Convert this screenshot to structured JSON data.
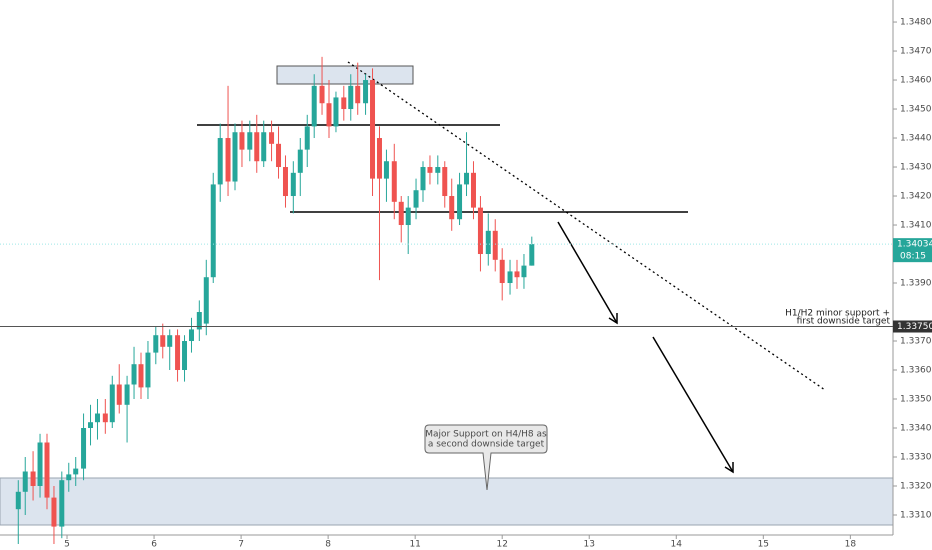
{
  "chart_data": {
    "type": "candlestick",
    "up_color": "#26a69a",
    "down_color": "#ef5350",
    "x": [
      -0.56,
      -0.48,
      -0.39,
      -0.31,
      -0.23,
      -0.15,
      -0.06,
      0.02,
      0.1,
      0.19,
      0.27,
      0.35,
      0.44,
      0.52,
      0.6,
      0.69,
      0.77,
      0.85,
      0.93,
      1.02,
      1.1,
      1.18,
      1.27,
      1.35,
      1.43,
      1.52,
      1.6,
      1.68,
      1.76,
      1.85,
      1.93,
      2.01,
      2.1,
      2.18,
      2.26,
      2.35,
      2.43,
      2.51,
      2.6,
      2.68,
      2.76,
      2.84,
      2.93,
      3.01,
      3.09,
      3.18,
      3.26,
      3.34,
      3.43,
      3.51,
      3.59,
      3.67,
      3.76,
      3.84,
      3.92,
      4.01,
      4.09,
      4.17,
      4.26,
      4.34,
      4.42,
      4.51,
      4.59,
      4.67,
      4.75,
      4.84,
      4.92,
      5.0,
      5.09,
      5.17,
      5.25,
      5.34
    ],
    "open": [
      1.3312,
      1.3318,
      1.3325,
      1.332,
      1.3335,
      1.3316,
      1.3306,
      1.3322,
      1.3324,
      1.3326,
      1.334,
      1.3342,
      1.3345,
      1.3342,
      1.3355,
      1.3348,
      1.3355,
      1.3362,
      1.3354,
      1.3366,
      1.3372,
      1.3368,
      1.3372,
      1.336,
      1.337,
      1.3374,
      1.3376,
      1.3392,
      1.3424,
      1.344,
      1.3425,
      1.3442,
      1.3436,
      1.3442,
      1.3432,
      1.3442,
      1.3438,
      1.343,
      1.342,
      1.3428,
      1.3436,
      1.3444,
      1.3458,
      1.3452,
      1.3444,
      1.3454,
      1.345,
      1.3458,
      1.3452,
      1.346,
      1.344,
      1.3426,
      1.3432,
      1.3418,
      1.341,
      1.3416,
      1.3422,
      1.343,
      1.3428,
      1.343,
      1.342,
      1.3412,
      1.3424,
      1.3428,
      1.3416,
      1.34,
      1.3408,
      1.3398,
      1.339,
      1.3394,
      1.3392,
      1.3396
    ],
    "high": [
      1.3322,
      1.333,
      1.3332,
      1.3338,
      1.3338,
      1.332,
      1.3325,
      1.3328,
      1.333,
      1.3345,
      1.3348,
      1.335,
      1.335,
      1.3358,
      1.3362,
      1.3358,
      1.3368,
      1.3366,
      1.337,
      1.3375,
      1.3376,
      1.3374,
      1.3374,
      1.3372,
      1.3378,
      1.3384,
      1.3398,
      1.3428,
      1.3445,
      1.3458,
      1.3445,
      1.3446,
      1.3446,
      1.3448,
      1.3446,
      1.3446,
      1.3444,
      1.3434,
      1.3432,
      1.344,
      1.3448,
      1.3462,
      1.3468,
      1.346,
      1.3456,
      1.3458,
      1.3462,
      1.3466,
      1.3462,
      1.3464,
      1.3444,
      1.3436,
      1.3438,
      1.342,
      1.342,
      1.3426,
      1.3432,
      1.3434,
      1.3434,
      1.3432,
      1.3426,
      1.3428,
      1.3442,
      1.3432,
      1.342,
      1.3414,
      1.3412,
      1.3402,
      1.3398,
      1.3398,
      1.34,
      1.3406
    ],
    "low": [
      1.33,
      1.331,
      1.3315,
      1.3316,
      1.3312,
      1.33,
      1.3302,
      1.3318,
      1.332,
      1.3322,
      1.3334,
      1.3336,
      1.3338,
      1.334,
      1.3345,
      1.3335,
      1.335,
      1.335,
      1.335,
      1.3362,
      1.3364,
      1.336,
      1.3356,
      1.3356,
      1.3366,
      1.337,
      1.3372,
      1.339,
      1.3418,
      1.342,
      1.3422,
      1.343,
      1.3432,
      1.3428,
      1.343,
      1.3432,
      1.3426,
      1.3416,
      1.3414,
      1.342,
      1.343,
      1.344,
      1.3448,
      1.344,
      1.3442,
      1.3446,
      1.3446,
      1.3448,
      1.3448,
      1.342,
      1.3391,
      1.3418,
      1.3412,
      1.3404,
      1.34,
      1.3412,
      1.3418,
      1.3424,
      1.3424,
      1.3416,
      1.3408,
      1.341,
      1.342,
      1.3412,
      1.3394,
      1.3396,
      1.3394,
      1.3384,
      1.3386,
      1.3388,
      1.3388,
      1.3396
    ],
    "close": [
      1.3318,
      1.3325,
      1.332,
      1.3335,
      1.3316,
      1.3306,
      1.3322,
      1.3324,
      1.3326,
      1.334,
      1.3342,
      1.3345,
      1.3342,
      1.3355,
      1.3348,
      1.3355,
      1.3362,
      1.3354,
      1.3366,
      1.3372,
      1.3368,
      1.3372,
      1.336,
      1.337,
      1.3374,
      1.338,
      1.3392,
      1.3424,
      1.344,
      1.3425,
      1.3442,
      1.3436,
      1.3442,
      1.3432,
      1.3442,
      1.3438,
      1.343,
      1.342,
      1.3428,
      1.3436,
      1.3444,
      1.3458,
      1.3452,
      1.3444,
      1.3454,
      1.345,
      1.3458,
      1.3452,
      1.346,
      1.3426,
      1.3426,
      1.3432,
      1.3418,
      1.341,
      1.3416,
      1.3422,
      1.343,
      1.3428,
      1.343,
      1.342,
      1.3412,
      1.3424,
      1.3428,
      1.3416,
      1.34,
      1.3408,
      1.3398,
      1.339,
      1.3394,
      1.3392,
      1.3396,
      1.34034
    ],
    "xlim": [
      -0.77,
      9.49
    ],
    "xticks": [
      {
        "value": 0,
        "label": "5"
      },
      {
        "value": 1,
        "label": "6"
      },
      {
        "value": 2,
        "label": "7"
      },
      {
        "value": 3,
        "label": "8"
      },
      {
        "value": 4,
        "label": "11"
      },
      {
        "value": 5,
        "label": "12"
      },
      {
        "value": 6,
        "label": "13"
      },
      {
        "value": 7,
        "label": "14"
      },
      {
        "value": 8,
        "label": "15"
      },
      {
        "value": 9,
        "label": "18"
      }
    ],
    "ylim": [
      1.33031,
      1.34876
    ],
    "yticks": [
      {
        "value": 1.331,
        "label": "1.33100"
      },
      {
        "value": 1.332,
        "label": "1.33200"
      },
      {
        "value": 1.333,
        "label": "1.33300"
      },
      {
        "value": 1.334,
        "label": "1.33400"
      },
      {
        "value": 1.335,
        "label": "1.33500"
      },
      {
        "value": 1.336,
        "label": "1.33600"
      },
      {
        "value": 1.337,
        "label": "1.33700"
      },
      {
        "value": 1.339,
        "label": "1.33900"
      },
      {
        "value": 1.341,
        "label": "1.34100"
      },
      {
        "value": 1.342,
        "label": "1.34200"
      },
      {
        "value": 1.343,
        "label": "1.34300"
      },
      {
        "value": 1.344,
        "label": "1.34400"
      },
      {
        "value": 1.345,
        "label": "1.34500"
      },
      {
        "value": 1.346,
        "label": "1.34600"
      },
      {
        "value": 1.347,
        "label": "1.34700"
      },
      {
        "value": 1.348,
        "label": "1.34800"
      }
    ],
    "price_line": {
      "value": 1.3375,
      "label": "1.33750"
    },
    "last_price": {
      "value": 1.34034,
      "label": "1.34034"
    },
    "countdown": "08:15",
    "support_note": [
      "H1/H2 minor support +",
      "first downside target"
    ],
    "major_note": [
      "Major Support on H4/H8 as",
      "a second downside target"
    ]
  }
}
